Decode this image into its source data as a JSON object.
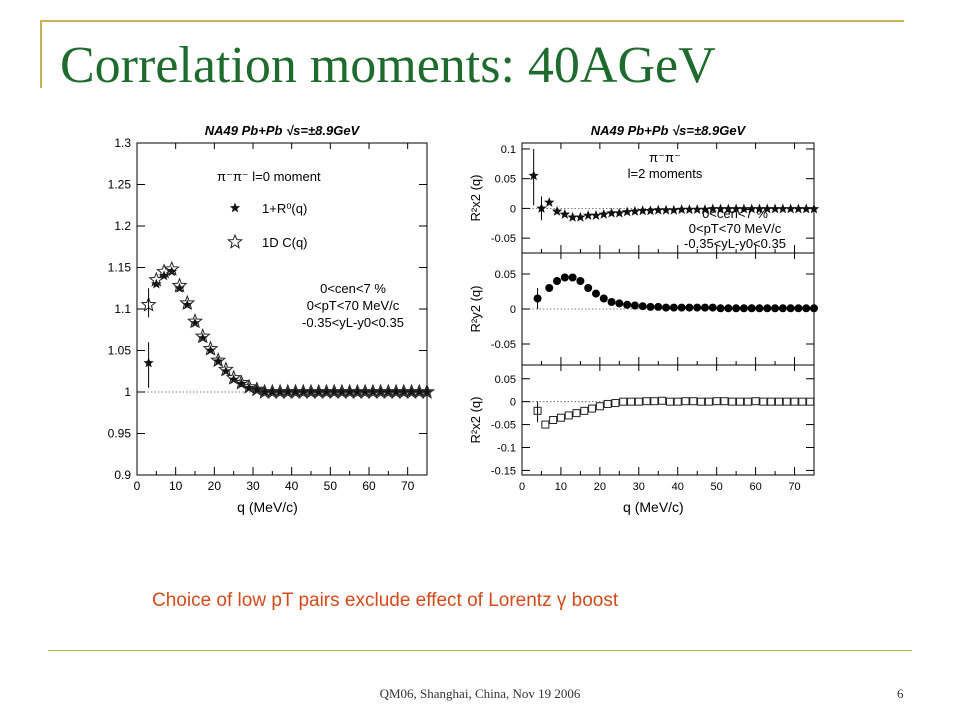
{
  "slide": {
    "title": "Correlation moments: 40AGeV",
    "caption": "Choice of low pT pairs exclude effect of Lorentz γ boost",
    "footer": "QM06, Shanghai, China, Nov 19 2006",
    "page_number": "6",
    "accent_color": "#c9b25a",
    "title_color": "#1f6b2e",
    "caption_color": "#d64a1a"
  },
  "chart_data": [
    {
      "type": "scatter",
      "title": "NA49 Pb+Pb √s=±8.9GeV",
      "xlabel": "q (MeV/c)",
      "ylabel": "",
      "xlim": [
        0,
        75
      ],
      "ylim": [
        0.9,
        1.3
      ],
      "xticks": [
        0,
        10,
        20,
        30,
        40,
        50,
        60,
        70
      ],
      "yticks": [
        0.9,
        0.95,
        1,
        1.05,
        1.1,
        1.15,
        1.2,
        1.25,
        1.3
      ],
      "legend_header": "π⁻π⁻ l=0 moment",
      "cuts": [
        "0<cen<7 %",
        "0<pT<70 MeV/c",
        "-0.35<yL-y0<0.35"
      ],
      "series": [
        {
          "name": "1+R⁰(q)",
          "marker": "filled-star",
          "x": [
            3,
            5,
            7,
            9,
            11,
            13,
            15,
            17,
            19,
            21,
            23,
            25,
            27,
            29,
            31,
            33,
            35,
            37,
            39,
            41,
            43,
            45,
            47,
            49,
            51,
            53,
            55,
            57,
            59,
            61,
            63,
            65,
            67,
            69,
            71,
            73,
            75
          ],
          "y": [
            1.035,
            1.13,
            1.14,
            1.145,
            1.125,
            1.105,
            1.083,
            1.065,
            1.05,
            1.037,
            1.025,
            1.015,
            1.01,
            1.005,
            1.003,
            1.0,
            1.0,
            1.0,
            1.0,
            1.0,
            1.0,
            1.0,
            1.0,
            1.0,
            1.0,
            1.0,
            1.0,
            1.0,
            1.0,
            1.0,
            1.0,
            1.0,
            1.0,
            1.0,
            1.0,
            1.0,
            1.0
          ]
        },
        {
          "name": "1D C(q)",
          "marker": "open-star",
          "x": [
            3,
            5,
            7,
            9,
            11,
            13,
            15,
            17,
            19,
            21,
            23,
            25,
            27,
            29,
            31,
            33,
            35,
            37,
            39,
            41,
            43,
            45,
            47,
            49,
            51,
            53,
            55,
            57,
            59,
            61,
            63,
            65,
            67,
            69,
            71,
            73,
            75
          ],
          "y": [
            1.105,
            1.135,
            1.145,
            1.148,
            1.128,
            1.107,
            1.085,
            1.067,
            1.052,
            1.038,
            1.027,
            1.017,
            1.011,
            1.006,
            1.003,
            1.0,
            1.0,
            1.0,
            1.0,
            1.0,
            1.0,
            1.0,
            1.0,
            1.0,
            1.0,
            1.0,
            1.0,
            1.0,
            1.0,
            1.0,
            1.0,
            1.0,
            1.0,
            1.0,
            1.0,
            1.0,
            1.0
          ]
        }
      ]
    },
    {
      "type": "scatter",
      "title": "NA49 Pb+Pb √s=±8.9GeV",
      "ylabel": "R²x2 (q)",
      "xlim": [
        0,
        75
      ],
      "ylim": [
        -0.075,
        0.11
      ],
      "yticks": [
        -0.05,
        0,
        0.05,
        0.1
      ],
      "legend_header": "π⁻π⁻",
      "legend_sub": "l=2 moments",
      "cuts": [
        "0<cen<7 %",
        "0<pT<70 MeV/c",
        "-0.35<yL-y0<0.35"
      ],
      "series": [
        {
          "name": "",
          "marker": "filled-star",
          "x": [
            3,
            5,
            7,
            9,
            11,
            13,
            15,
            17,
            19,
            21,
            23,
            25,
            27,
            29,
            31,
            33,
            35,
            37,
            39,
            41,
            43,
            45,
            47,
            49,
            51,
            53,
            55,
            57,
            59,
            61,
            63,
            65,
            67,
            69,
            71,
            73,
            75
          ],
          "y": [
            0.055,
            0.0,
            0.01,
            -0.005,
            -0.01,
            -0.015,
            -0.015,
            -0.012,
            -0.012,
            -0.01,
            -0.008,
            -0.008,
            -0.006,
            -0.005,
            -0.004,
            -0.004,
            -0.003,
            -0.003,
            -0.003,
            -0.002,
            -0.002,
            -0.002,
            -0.002,
            -0.001,
            -0.001,
            -0.001,
            -0.001,
            -0.001,
            -0.001,
            -0.001,
            -0.001,
            -0.001,
            -0.001,
            -0.001,
            -0.001,
            -0.001,
            -0.001
          ]
        }
      ]
    },
    {
      "type": "scatter",
      "ylabel": "R²y2 (q)",
      "xlim": [
        0,
        75
      ],
      "ylim": [
        -0.08,
        0.08
      ],
      "yticks": [
        -0.05,
        0,
        0.05
      ],
      "series": [
        {
          "name": "",
          "marker": "filled-circle",
          "x": [
            4,
            7,
            9,
            11,
            13,
            15,
            17,
            19,
            21,
            23,
            25,
            27,
            29,
            31,
            33,
            35,
            37,
            39,
            41,
            43,
            45,
            47,
            49,
            51,
            53,
            55,
            57,
            59,
            61,
            63,
            65,
            67,
            69,
            71,
            73,
            75
          ],
          "y": [
            0.015,
            0.03,
            0.04,
            0.045,
            0.045,
            0.04,
            0.03,
            0.022,
            0.015,
            0.01,
            0.008,
            0.006,
            0.005,
            0.004,
            0.003,
            0.003,
            0.002,
            0.002,
            0.002,
            0.002,
            0.002,
            0.002,
            0.002,
            0.001,
            0.001,
            0.001,
            0.001,
            0.001,
            0.001,
            0.001,
            0.001,
            0.001,
            0.001,
            0.001,
            0.001,
            0.001
          ]
        }
      ]
    },
    {
      "type": "scatter",
      "xlabel": "q (MeV/c)",
      "ylabel": "R²x2 (q)",
      "xlim": [
        0,
        75
      ],
      "ylim": [
        -0.16,
        0.08
      ],
      "xticks": [
        0,
        10,
        20,
        30,
        40,
        50,
        60,
        70
      ],
      "yticks": [
        -0.15,
        -0.1,
        -0.05,
        0,
        0.05
      ],
      "series": [
        {
          "name": "",
          "marker": "open-square",
          "x": [
            4,
            6,
            8,
            10,
            12,
            14,
            16,
            18,
            20,
            22,
            24,
            26,
            28,
            30,
            32,
            34,
            36,
            38,
            40,
            42,
            44,
            46,
            48,
            50,
            52,
            54,
            56,
            58,
            60,
            62,
            64,
            66,
            68,
            70,
            72,
            74
          ],
          "y": [
            -0.02,
            -0.05,
            -0.04,
            -0.035,
            -0.03,
            -0.025,
            -0.02,
            -0.015,
            -0.01,
            -0.005,
            -0.003,
            0.0,
            0.0,
            0.0,
            0.001,
            0.001,
            0.002,
            0.0,
            0.0,
            0.001,
            0.001,
            0.0,
            0.0,
            0.001,
            0.001,
            0.0,
            0.0,
            0.0,
            0.001,
            0.0,
            0.0,
            0.0,
            0.0,
            0.0,
            0.0,
            0.0
          ]
        }
      ]
    }
  ]
}
